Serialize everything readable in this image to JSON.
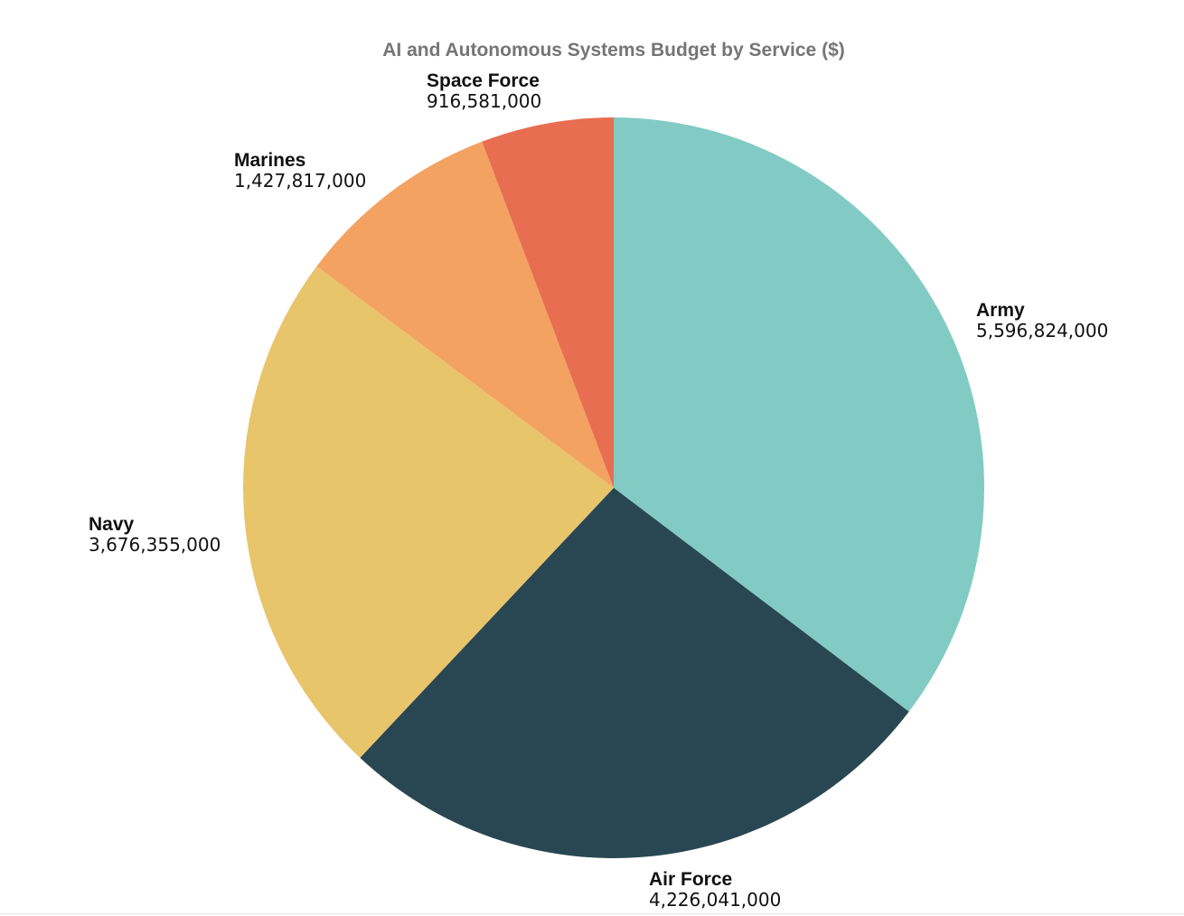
{
  "chart_data": {
    "type": "pie",
    "title": "AI and Autonomous Systems Budget by Service ($)",
    "start_angle_deg": 0,
    "direction": "clockwise",
    "legend": "none",
    "slices": [
      {
        "label": "Army",
        "value": 5596824000,
        "display_value": "5,596,824,000",
        "color": "#82cbc4"
      },
      {
        "label": "Air Force",
        "value": 4226041000,
        "display_value": "4,226,041,000",
        "color": "#294752"
      },
      {
        "label": "Navy",
        "value": 3676355000,
        "display_value": "3,676,355,000",
        "color": "#e8c46b"
      },
      {
        "label": "Marines",
        "value": 1427817000,
        "display_value": "1,427,817,000",
        "color": "#f3a262"
      },
      {
        "label": "Space Force",
        "value": 916581000,
        "display_value": "916,581,000",
        "color": "#e76e51"
      }
    ]
  }
}
